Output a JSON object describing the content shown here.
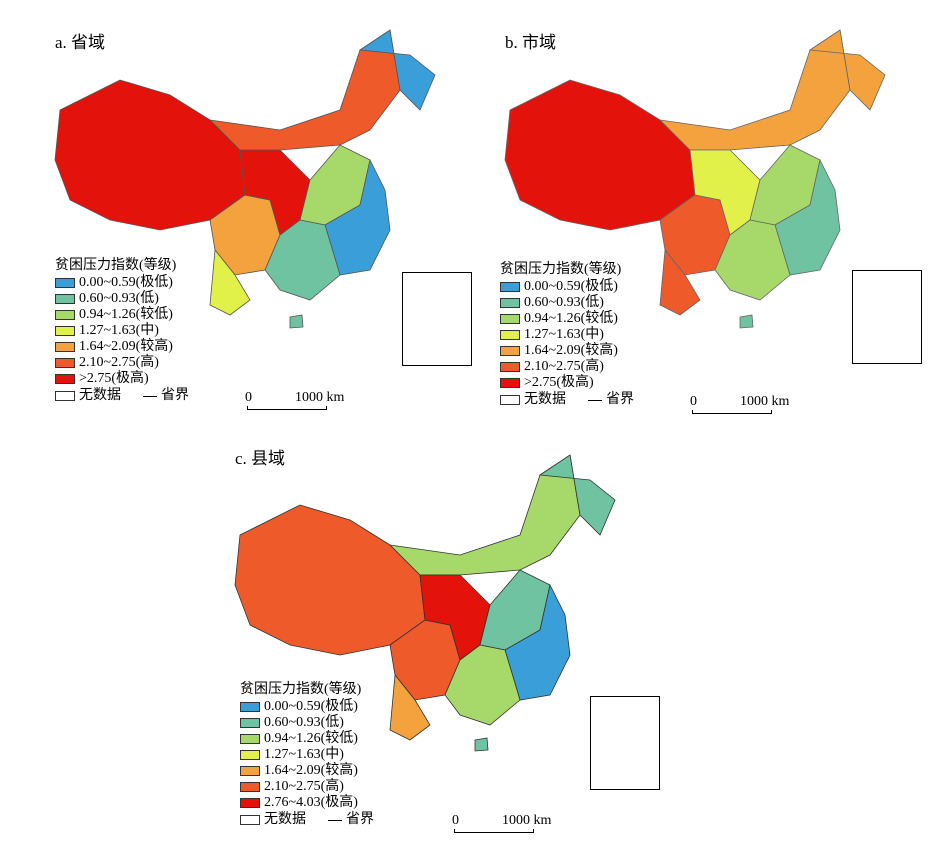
{
  "legend_title": "贫困压力指数(等级)",
  "classes": [
    {
      "label": "0.00~0.59(极低)",
      "color": "#3a9fd8"
    },
    {
      "label": "0.60~0.93(低)",
      "color": "#6fc3a0"
    },
    {
      "label": "0.94~1.26(较低)",
      "color": "#a6d86a"
    },
    {
      "label": "1.27~1.63(中)",
      "color": "#e2f04a"
    },
    {
      "label": "1.64~2.09(较高)",
      "color": "#f4a23e"
    },
    {
      "label": "2.10~2.75(高)",
      "color": "#ee5a2a"
    },
    {
      "label": ">2.75(极高)",
      "color": "#e3120b"
    }
  ],
  "county_top_label": "2.76~4.03(极高)",
  "no_data_label": "无数据",
  "boundary_label": "省界",
  "scale": {
    "zero": "0",
    "distance": "1000 km"
  },
  "panels": {
    "a": {
      "title": "a. 省域"
    },
    "b": {
      "title": "b. 市域"
    },
    "c": {
      "title": "c. 县域"
    }
  }
}
